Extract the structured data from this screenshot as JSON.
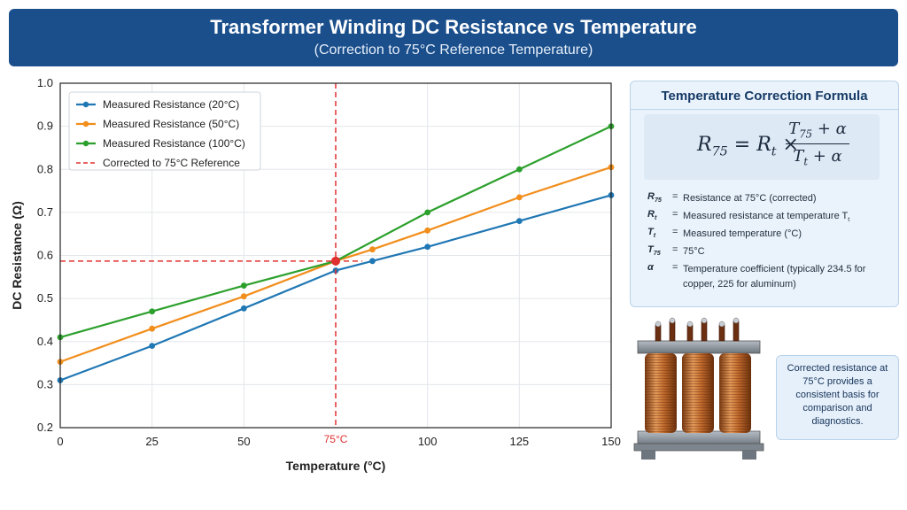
{
  "header": {
    "title": "Transformer Winding DC Resistance vs Temperature",
    "subtitle": "(Correction to 75°C Reference Temperature)"
  },
  "chart_data": {
    "type": "line",
    "xlabel": "Temperature (°C)",
    "ylabel": "DC Resistance (Ω)",
    "xlim": [
      0,
      150
    ],
    "ylim": [
      0.2,
      1.0
    ],
    "xticks": [
      0,
      25,
      50,
      100,
      125,
      150
    ],
    "yticks": [
      0.2,
      0.3,
      0.4,
      0.5,
      0.6,
      0.7,
      0.8,
      0.9,
      1.0
    ],
    "grid": true,
    "legend_position": "top-left",
    "series": [
      {
        "name": "Measured Resistance (20°C)",
        "color": "#1f77b4",
        "x": [
          0,
          25,
          50,
          75,
          85,
          100,
          125,
          150
        ],
        "y": [
          0.31,
          0.39,
          0.477,
          0.565,
          0.587,
          0.62,
          0.68,
          0.74
        ]
      },
      {
        "name": "Measured Resistance (50°C)",
        "color": "#f28e1c",
        "x": [
          0,
          25,
          50,
          75,
          85,
          100,
          125,
          150
        ],
        "y": [
          0.353,
          0.43,
          0.505,
          0.587,
          0.614,
          0.658,
          0.735,
          0.805
        ]
      },
      {
        "name": "Measured Resistance (100°C)",
        "color": "#2ca02c",
        "x": [
          0,
          25,
          50,
          75,
          100,
          125,
          150
        ],
        "y": [
          0.41,
          0.47,
          0.53,
          0.587,
          0.7,
          0.8,
          0.9
        ]
      }
    ],
    "reference": {
      "name": "Corrected to 75°C Reference",
      "color": "#e03030",
      "x": 75,
      "y": 0.587,
      "label": "75°C"
    }
  },
  "formula_panel": {
    "title": "Temperature Correction Formula",
    "definitions": [
      {
        "symbol": "R",
        "sub": "75",
        "eq": "=",
        "text": "Resistance at 75°C (corrected)"
      },
      {
        "symbol": "R",
        "sub": "t",
        "eq": "=",
        "text": "Measured resistance at temperature T",
        "text_sub": "t"
      },
      {
        "symbol": "T",
        "sub": "t",
        "eq": "=",
        "text": "Measured temperature (°C)"
      },
      {
        "symbol": "T",
        "sub": "75",
        "eq": "=",
        "text": "75°C"
      },
      {
        "symbol": "α",
        "sub": "",
        "eq": "=",
        "text": "Temperature coefficient (typically 234.5 for copper, 225 for aluminum)"
      }
    ]
  },
  "callout": {
    "text": "Corrected resistance at 75°C provides a consistent basis for comparison and diagnostics."
  }
}
